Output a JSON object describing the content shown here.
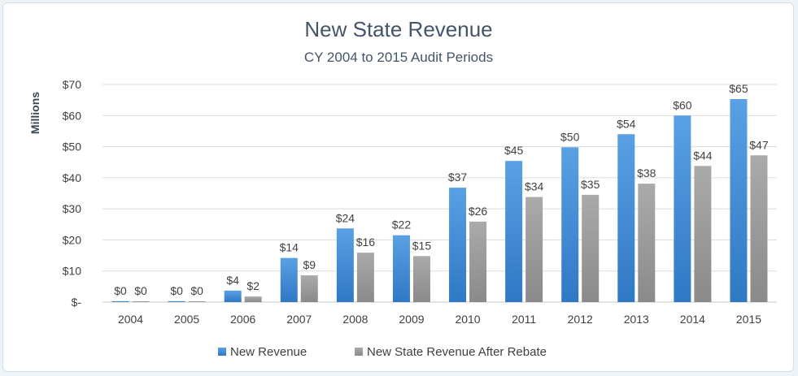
{
  "chart_data": {
    "type": "bar",
    "title": "New State Revenue",
    "subtitle": "CY 2004 to 2015 Audit Periods",
    "xlabel": "",
    "ylabel": "Millions",
    "ylim": [
      0,
      70
    ],
    "yticks": [
      0,
      10,
      20,
      30,
      40,
      50,
      60,
      70
    ],
    "ytick_labels": [
      "$-",
      "$10",
      "$20",
      "$30",
      "$40",
      "$50",
      "$60",
      "$70"
    ],
    "grid": true,
    "legend_position": "bottom",
    "categories": [
      "2004",
      "2005",
      "2006",
      "2007",
      "2008",
      "2009",
      "2010",
      "2011",
      "2012",
      "2013",
      "2014",
      "2015"
    ],
    "series": [
      {
        "name": "New Revenue",
        "color": "#4a90d9",
        "values": [
          0.3,
          0.3,
          3.7,
          14.2,
          23.7,
          21.5,
          36.8,
          45.4,
          49.8,
          54.0,
          60.0,
          65.3
        ],
        "labels": [
          "$0",
          "$0",
          "$4",
          "$14",
          "$24",
          "$22",
          "$37",
          "$45",
          "$50",
          "$54",
          "$60",
          "$65"
        ]
      },
      {
        "name": "New State Revenue After Rebate",
        "color": "#9e9e9e",
        "values": [
          0.2,
          0.2,
          1.8,
          8.6,
          15.9,
          14.8,
          25.9,
          33.8,
          34.5,
          38.1,
          43.8,
          47.2
        ],
        "labels": [
          "$0",
          "$0",
          "$2",
          "$9",
          "$16",
          "$15",
          "$26",
          "$34",
          "$35",
          "$38",
          "$44",
          "$47"
        ]
      }
    ]
  }
}
